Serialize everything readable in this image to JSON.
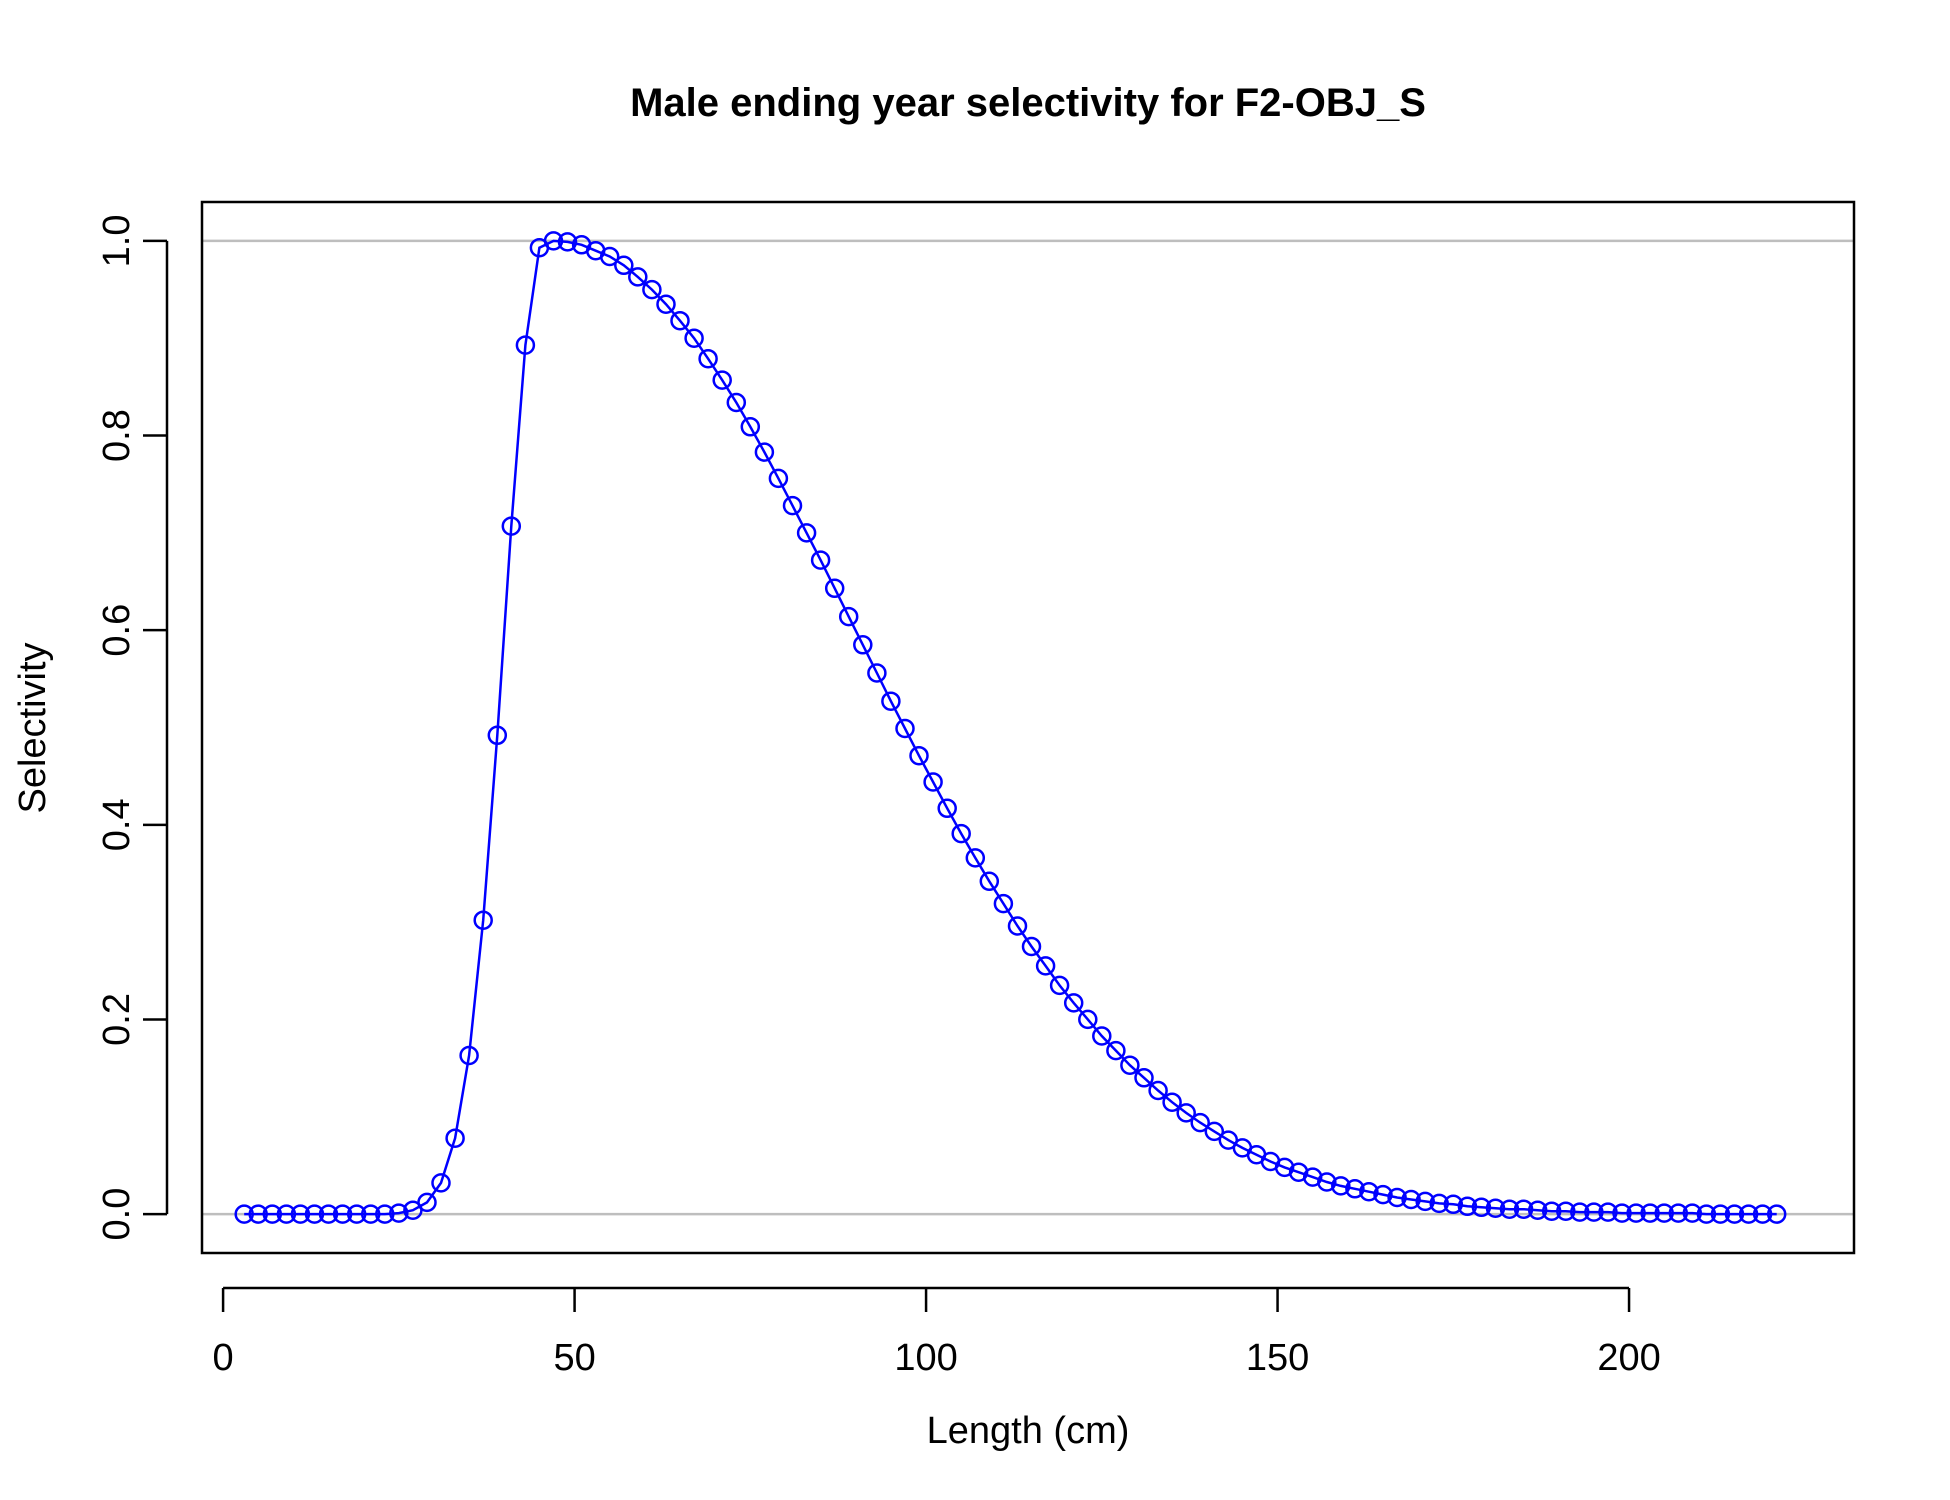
{
  "chart_data": {
    "type": "line",
    "title": "Male ending year selectivity for F2-OBJ_S",
    "xlabel": "Length (cm)",
    "ylabel": "Selectivity",
    "xlim": [
      -3,
      232
    ],
    "ylim": [
      -0.04,
      1.04
    ],
    "x_ticks": [
      0,
      50,
      100,
      150,
      200
    ],
    "x_tick_labels": [
      "0",
      "50",
      "100",
      "150",
      "200"
    ],
    "y_ticks": [
      0.0,
      0.2,
      0.4,
      0.6,
      0.8,
      1.0
    ],
    "y_tick_labels": [
      "0.0",
      "0.2",
      "0.4",
      "0.6",
      "0.8",
      "1.0"
    ],
    "reference_lines": [
      0,
      1
    ],
    "grid": false,
    "series": [
      {
        "color": "#0000ff",
        "marker": "open-circle",
        "x": [
          3,
          5,
          7,
          9,
          11,
          13,
          15,
          17,
          19,
          21,
          23,
          25,
          27,
          29,
          31,
          33,
          35,
          37,
          39,
          41,
          43,
          45,
          47,
          49,
          51,
          53,
          55,
          57,
          59,
          61,
          63,
          65,
          67,
          69,
          71,
          73,
          75,
          77,
          79,
          81,
          83,
          85,
          87,
          89,
          91,
          93,
          95,
          97,
          99,
          101,
          103,
          105,
          107,
          109,
          111,
          113,
          115,
          117,
          119,
          121,
          123,
          125,
          127,
          129,
          131,
          133,
          135,
          137,
          139,
          141,
          143,
          145,
          147,
          149,
          151,
          153,
          155,
          157,
          159,
          161,
          163,
          165,
          167,
          169,
          171,
          173,
          175,
          177,
          179,
          181,
          183,
          185,
          187,
          189,
          191,
          193,
          195,
          197,
          199,
          201,
          203,
          205,
          207,
          209,
          211,
          213,
          215,
          217,
          219,
          221
        ],
        "y": [
          0.0,
          0.0,
          0.0,
          0.0,
          0.0,
          0.0,
          0.0,
          0.0,
          0.0,
          0.0,
          0.0,
          0.001,
          0.004,
          0.012,
          0.032,
          0.078,
          0.163,
          0.302,
          0.492,
          0.707,
          0.893,
          0.993,
          1.0,
          0.999,
          0.996,
          0.99,
          0.984,
          0.975,
          0.963,
          0.95,
          0.935,
          0.918,
          0.9,
          0.879,
          0.857,
          0.834,
          0.809,
          0.783,
          0.756,
          0.728,
          0.7,
          0.672,
          0.643,
          0.614,
          0.585,
          0.556,
          0.527,
          0.499,
          0.471,
          0.444,
          0.417,
          0.391,
          0.366,
          0.342,
          0.319,
          0.296,
          0.275,
          0.255,
          0.235,
          0.217,
          0.2,
          0.183,
          0.168,
          0.153,
          0.14,
          0.127,
          0.115,
          0.104,
          0.094,
          0.085,
          0.076,
          0.068,
          0.061,
          0.054,
          0.048,
          0.043,
          0.038,
          0.033,
          0.029,
          0.026,
          0.023,
          0.02,
          0.017,
          0.015,
          0.013,
          0.011,
          0.01,
          0.008,
          0.007,
          0.006,
          0.005,
          0.005,
          0.004,
          0.003,
          0.003,
          0.002,
          0.002,
          0.002,
          0.001,
          0.001,
          0.001,
          0.001,
          0.001,
          0.001,
          0.0,
          0.0,
          0.0,
          0.0,
          0.0,
          0.0
        ]
      }
    ]
  }
}
